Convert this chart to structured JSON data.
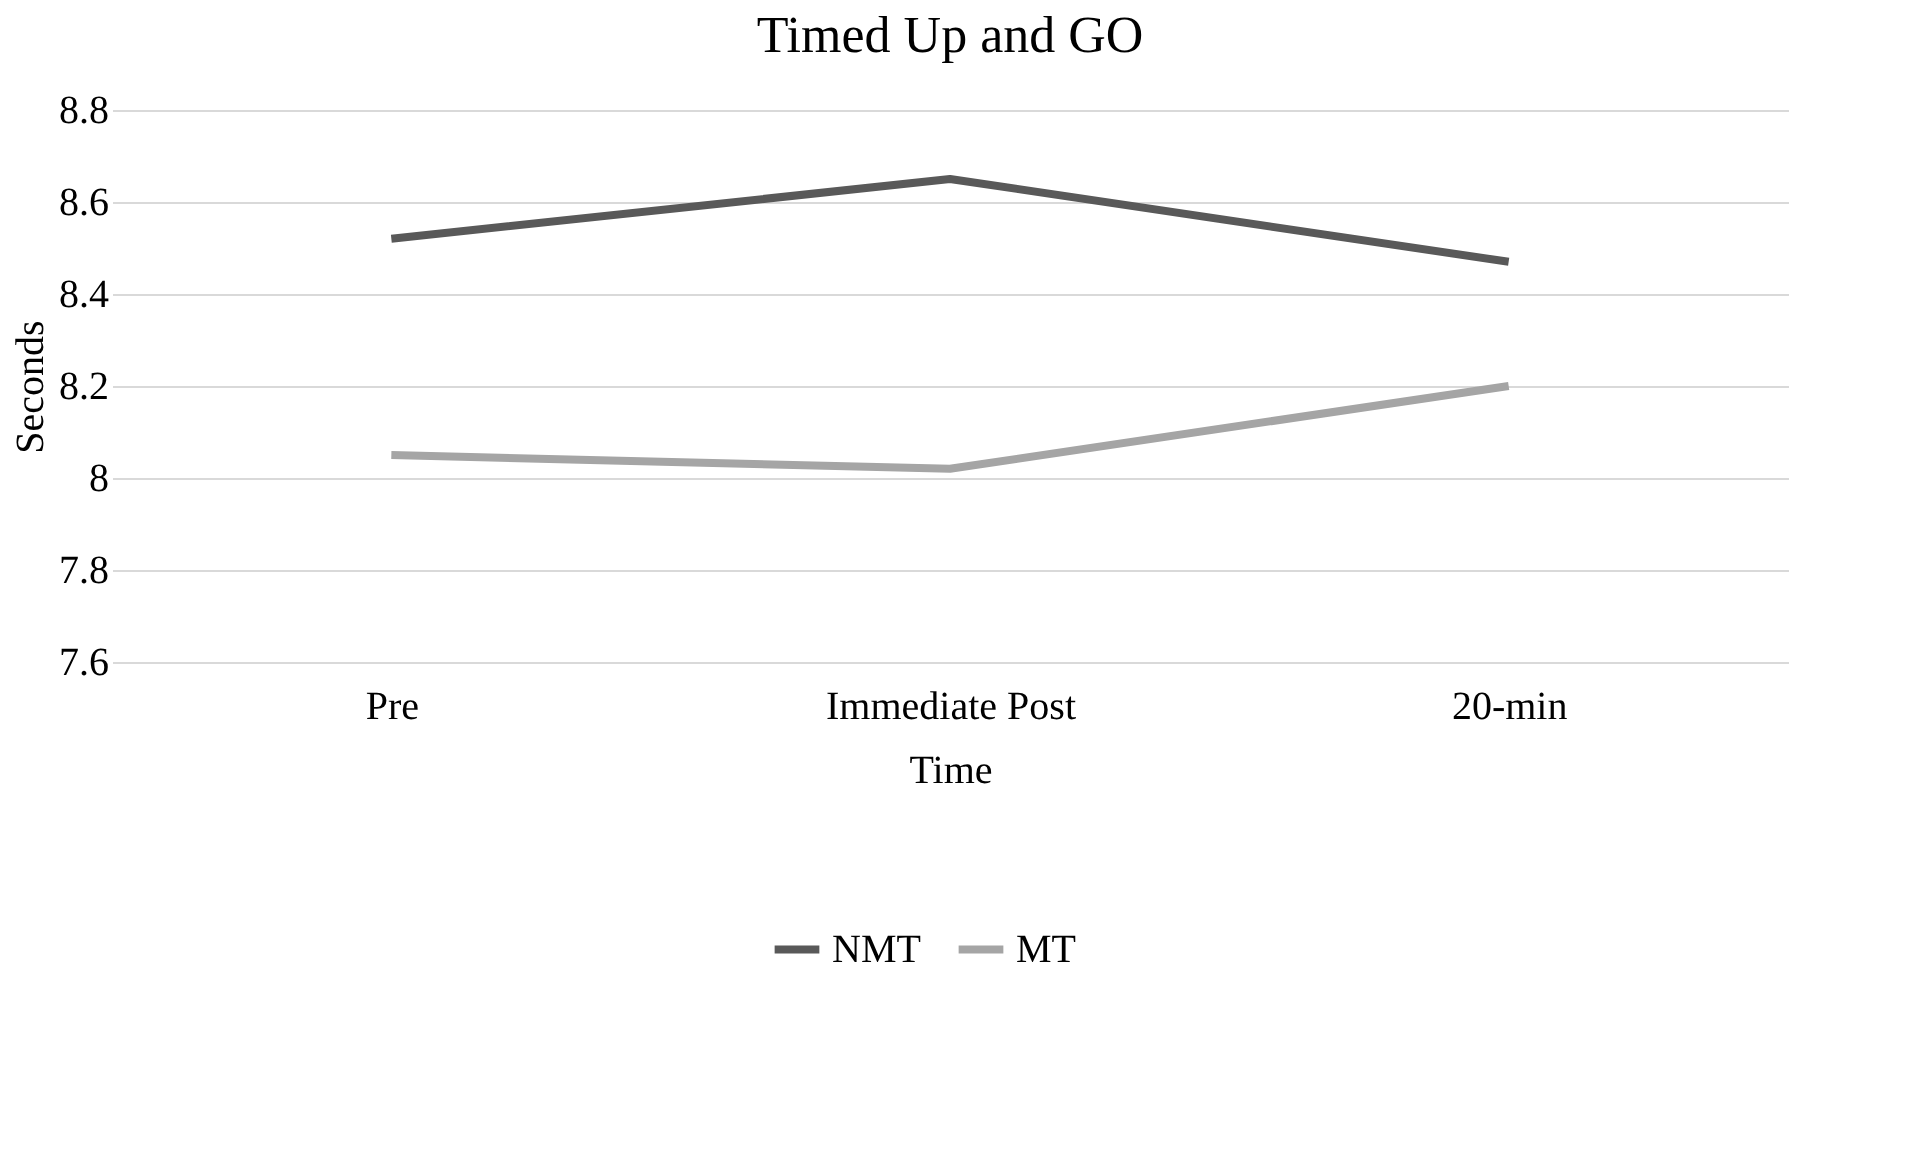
{
  "chart_data": {
    "type": "line",
    "title": "Timed Up and GO",
    "xlabel": "Time",
    "ylabel": "Seconds",
    "categories": [
      "Pre",
      "Immediate Post",
      "20-min"
    ],
    "series": [
      {
        "name": "NMT",
        "color": "#595959",
        "values": [
          8.52,
          8.65,
          8.47
        ]
      },
      {
        "name": "MT",
        "color": "#a5a5a5",
        "values": [
          8.05,
          8.02,
          8.2
        ]
      }
    ],
    "ylim": [
      7.6,
      8.8
    ],
    "yticks": [
      7.6,
      7.8,
      8,
      8.2,
      8.4,
      8.6,
      8.8
    ],
    "grid": "y",
    "legend": "bottom"
  }
}
